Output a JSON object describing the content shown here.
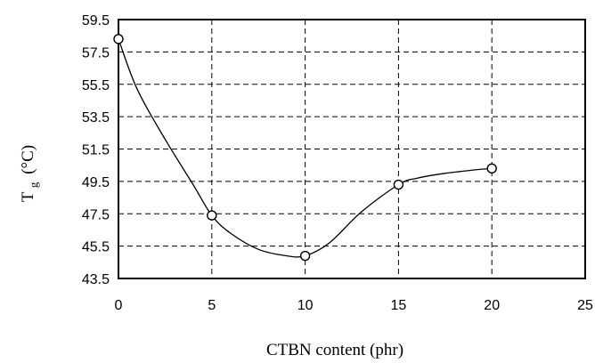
{
  "chart_data": {
    "type": "line",
    "xlabel": "CTBN content (phr)",
    "ylabel_main": "T",
    "ylabel_sub": "g",
    "ylabel_unit": "(°C)",
    "xlim": [
      0,
      25
    ],
    "ylim": [
      43.5,
      59.5
    ],
    "xticks": [
      "0",
      "5",
      "10",
      "15",
      "20",
      "25"
    ],
    "yticks": [
      "59.5",
      "57.5",
      "55.5",
      "53.5",
      "51.5",
      "49.5",
      "47.5",
      "45.5",
      "43.5"
    ],
    "grid": true,
    "legend": "none",
    "series": [
      {
        "markers": true,
        "x": [
          0,
          5,
          10,
          15,
          20
        ],
        "y": [
          58.3,
          47.4,
          44.9,
          49.3,
          50.3
        ]
      }
    ],
    "curve": {
      "x": [
        0,
        1,
        2.5,
        4,
        5,
        6,
        7.5,
        9,
        10,
        11.3,
        13,
        15,
        16,
        17.5,
        19,
        20
      ],
      "y": [
        58.3,
        55.2,
        52.1,
        49.3,
        47.4,
        46.3,
        45.3,
        44.9,
        44.9,
        45.7,
        47.6,
        49.3,
        49.7,
        50.0,
        50.2,
        50.3
      ]
    }
  }
}
